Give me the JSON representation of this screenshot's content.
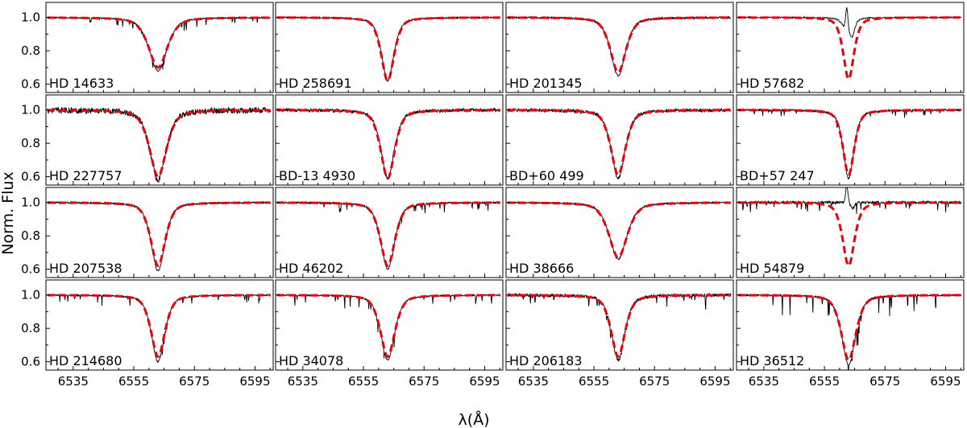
{
  "chart_data": {
    "type": "line",
    "layout": "4x4 grid of panels, shared axes",
    "xlabel": "λ(Å)",
    "ylabel": "Norm. Flux",
    "xlim": [
      6526,
      6601
    ],
    "ylim": [
      0.55,
      1.09
    ],
    "xticks": [
      6535,
      6555,
      6575,
      6595
    ],
    "yticks": [
      0.6,
      0.8,
      1.0
    ],
    "ytick_labels": [
      "0.6",
      "0.8",
      "1.0"
    ],
    "line_center": 6563,
    "series_styles": {
      "observed": {
        "color": "#000000",
        "style": "solid"
      },
      "model": {
        "color": "#e8000b",
        "style": "dashed"
      }
    },
    "panels": [
      {
        "star": "HD 14633",
        "model_min": 0.7,
        "model_width": 3.4,
        "obs_min": 0.68,
        "telluric": 0.06,
        "noise": 0.004,
        "emission": 0
      },
      {
        "star": "HD 258691",
        "model_min": 0.62,
        "model_width": 2.3,
        "obs_min": 0.62,
        "telluric": 0.0,
        "noise": 0.004,
        "emission": 0
      },
      {
        "star": "HD 201345",
        "model_min": 0.67,
        "model_width": 2.8,
        "obs_min": 0.65,
        "telluric": 0.0,
        "noise": 0.006,
        "emission": 0
      },
      {
        "star": "HD 57682",
        "model_min": 0.63,
        "model_width": 1.9,
        "obs_min": 0.91,
        "telluric": 0.0,
        "noise": 0.004,
        "emission": 0.14
      },
      {
        "star": "HD 227757",
        "model_min": 0.6,
        "model_width": 3.0,
        "obs_min": 0.58,
        "telluric": 0.0,
        "noise": 0.018,
        "emission": 0
      },
      {
        "star": "BD-13 4930",
        "model_min": 0.59,
        "model_width": 2.5,
        "obs_min": 0.59,
        "telluric": 0.0,
        "noise": 0.01,
        "emission": 0
      },
      {
        "star": "BD+60 499",
        "model_min": 0.61,
        "model_width": 2.6,
        "obs_min": 0.59,
        "telluric": 0.0,
        "noise": 0.01,
        "emission": 0
      },
      {
        "star": "BD+57 247",
        "model_min": 0.61,
        "model_width": 2.0,
        "obs_min": 0.59,
        "telluric": 0.04,
        "noise": 0.006,
        "emission": 0
      },
      {
        "star": "HD 207538",
        "model_min": 0.62,
        "model_width": 2.6,
        "obs_min": 0.59,
        "telluric": 0.0,
        "noise": 0.005,
        "emission": 0
      },
      {
        "star": "HD 46202",
        "model_min": 0.62,
        "model_width": 2.6,
        "obs_min": 0.6,
        "telluric": 0.06,
        "noise": 0.005,
        "emission": 0
      },
      {
        "star": "HD 38666",
        "model_min": 0.67,
        "model_width": 3.3,
        "obs_min": 0.66,
        "telluric": 0.0,
        "noise": 0.005,
        "emission": 0
      },
      {
        "star": "HD 54879",
        "model_min": 0.62,
        "model_width": 2.1,
        "obs_min": 1.0,
        "telluric": 0.07,
        "noise": 0.008,
        "emission": 0.1
      },
      {
        "star": "HD 214680",
        "model_min": 0.63,
        "model_width": 2.5,
        "obs_min": 0.6,
        "telluric": 0.06,
        "noise": 0.004,
        "emission": 0
      },
      {
        "star": "HD 34078",
        "model_min": 0.63,
        "model_width": 2.6,
        "obs_min": 0.61,
        "telluric": 0.08,
        "noise": 0.004,
        "emission": 0
      },
      {
        "star": "HD 206183",
        "model_min": 0.63,
        "model_width": 2.5,
        "obs_min": 0.61,
        "telluric": 0.07,
        "noise": 0.01,
        "emission": 0
      },
      {
        "star": "HD 36512",
        "model_min": 0.61,
        "model_width": 2.6,
        "obs_min": 0.58,
        "telluric": 0.13,
        "noise": 0.005,
        "emission": 0
      }
    ]
  }
}
